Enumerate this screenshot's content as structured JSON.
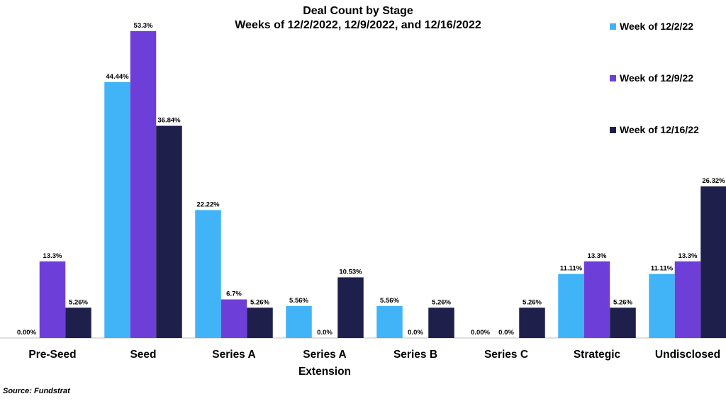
{
  "chart_data": {
    "type": "bar",
    "title": "Deal Count by Stage",
    "subtitle": "Weeks of 12/2/2022, 12/9/2022, and 12/16/2022",
    "categories": [
      "Pre-Seed",
      "Seed",
      "Series A",
      "Series A Extension",
      "Series B",
      "Series C",
      "Strategic",
      "Undisclosed"
    ],
    "category_lines": [
      [
        "Pre-Seed"
      ],
      [
        "Seed"
      ],
      [
        "Series A"
      ],
      [
        "Series A",
        "Extension"
      ],
      [
        "Series B"
      ],
      [
        "Series C"
      ],
      [
        "Strategic"
      ],
      [
        "Undisclosed"
      ]
    ],
    "series": [
      {
        "name": "Week of 12/2/22",
        "color": "#41B4F8",
        "values": [
          0.0,
          44.44,
          22.22,
          5.56,
          5.56,
          0.0,
          11.11,
          11.11
        ],
        "labels": [
          "0.00%",
          "44.44%",
          "22.22%",
          "5.56%",
          "5.56%",
          "0.00%",
          "11.11%",
          "11.11%"
        ]
      },
      {
        "name": "Week of 12/9/22",
        "color": "#6E3FD8",
        "values": [
          13.3,
          53.3,
          6.7,
          0.0,
          0.0,
          0.0,
          13.3,
          13.3
        ],
        "labels": [
          "13.3%",
          "53.3%",
          "6.7%",
          "0.0%",
          "0.0%",
          "0.0%",
          "13.3%",
          "13.3%"
        ]
      },
      {
        "name": "Week of 12/16/22",
        "color": "#1F1F4C",
        "values": [
          5.26,
          36.84,
          5.26,
          10.53,
          5.26,
          5.26,
          5.26,
          26.32
        ],
        "labels": [
          "5.26%",
          "36.84%",
          "5.26%",
          "10.53%",
          "5.26%",
          "5.26%",
          "5.26%",
          "26.32%"
        ]
      }
    ],
    "ylim": [
      0,
      55
    ],
    "grid": false,
    "legend": "top-right"
  },
  "source": "Source: Fundstrat"
}
